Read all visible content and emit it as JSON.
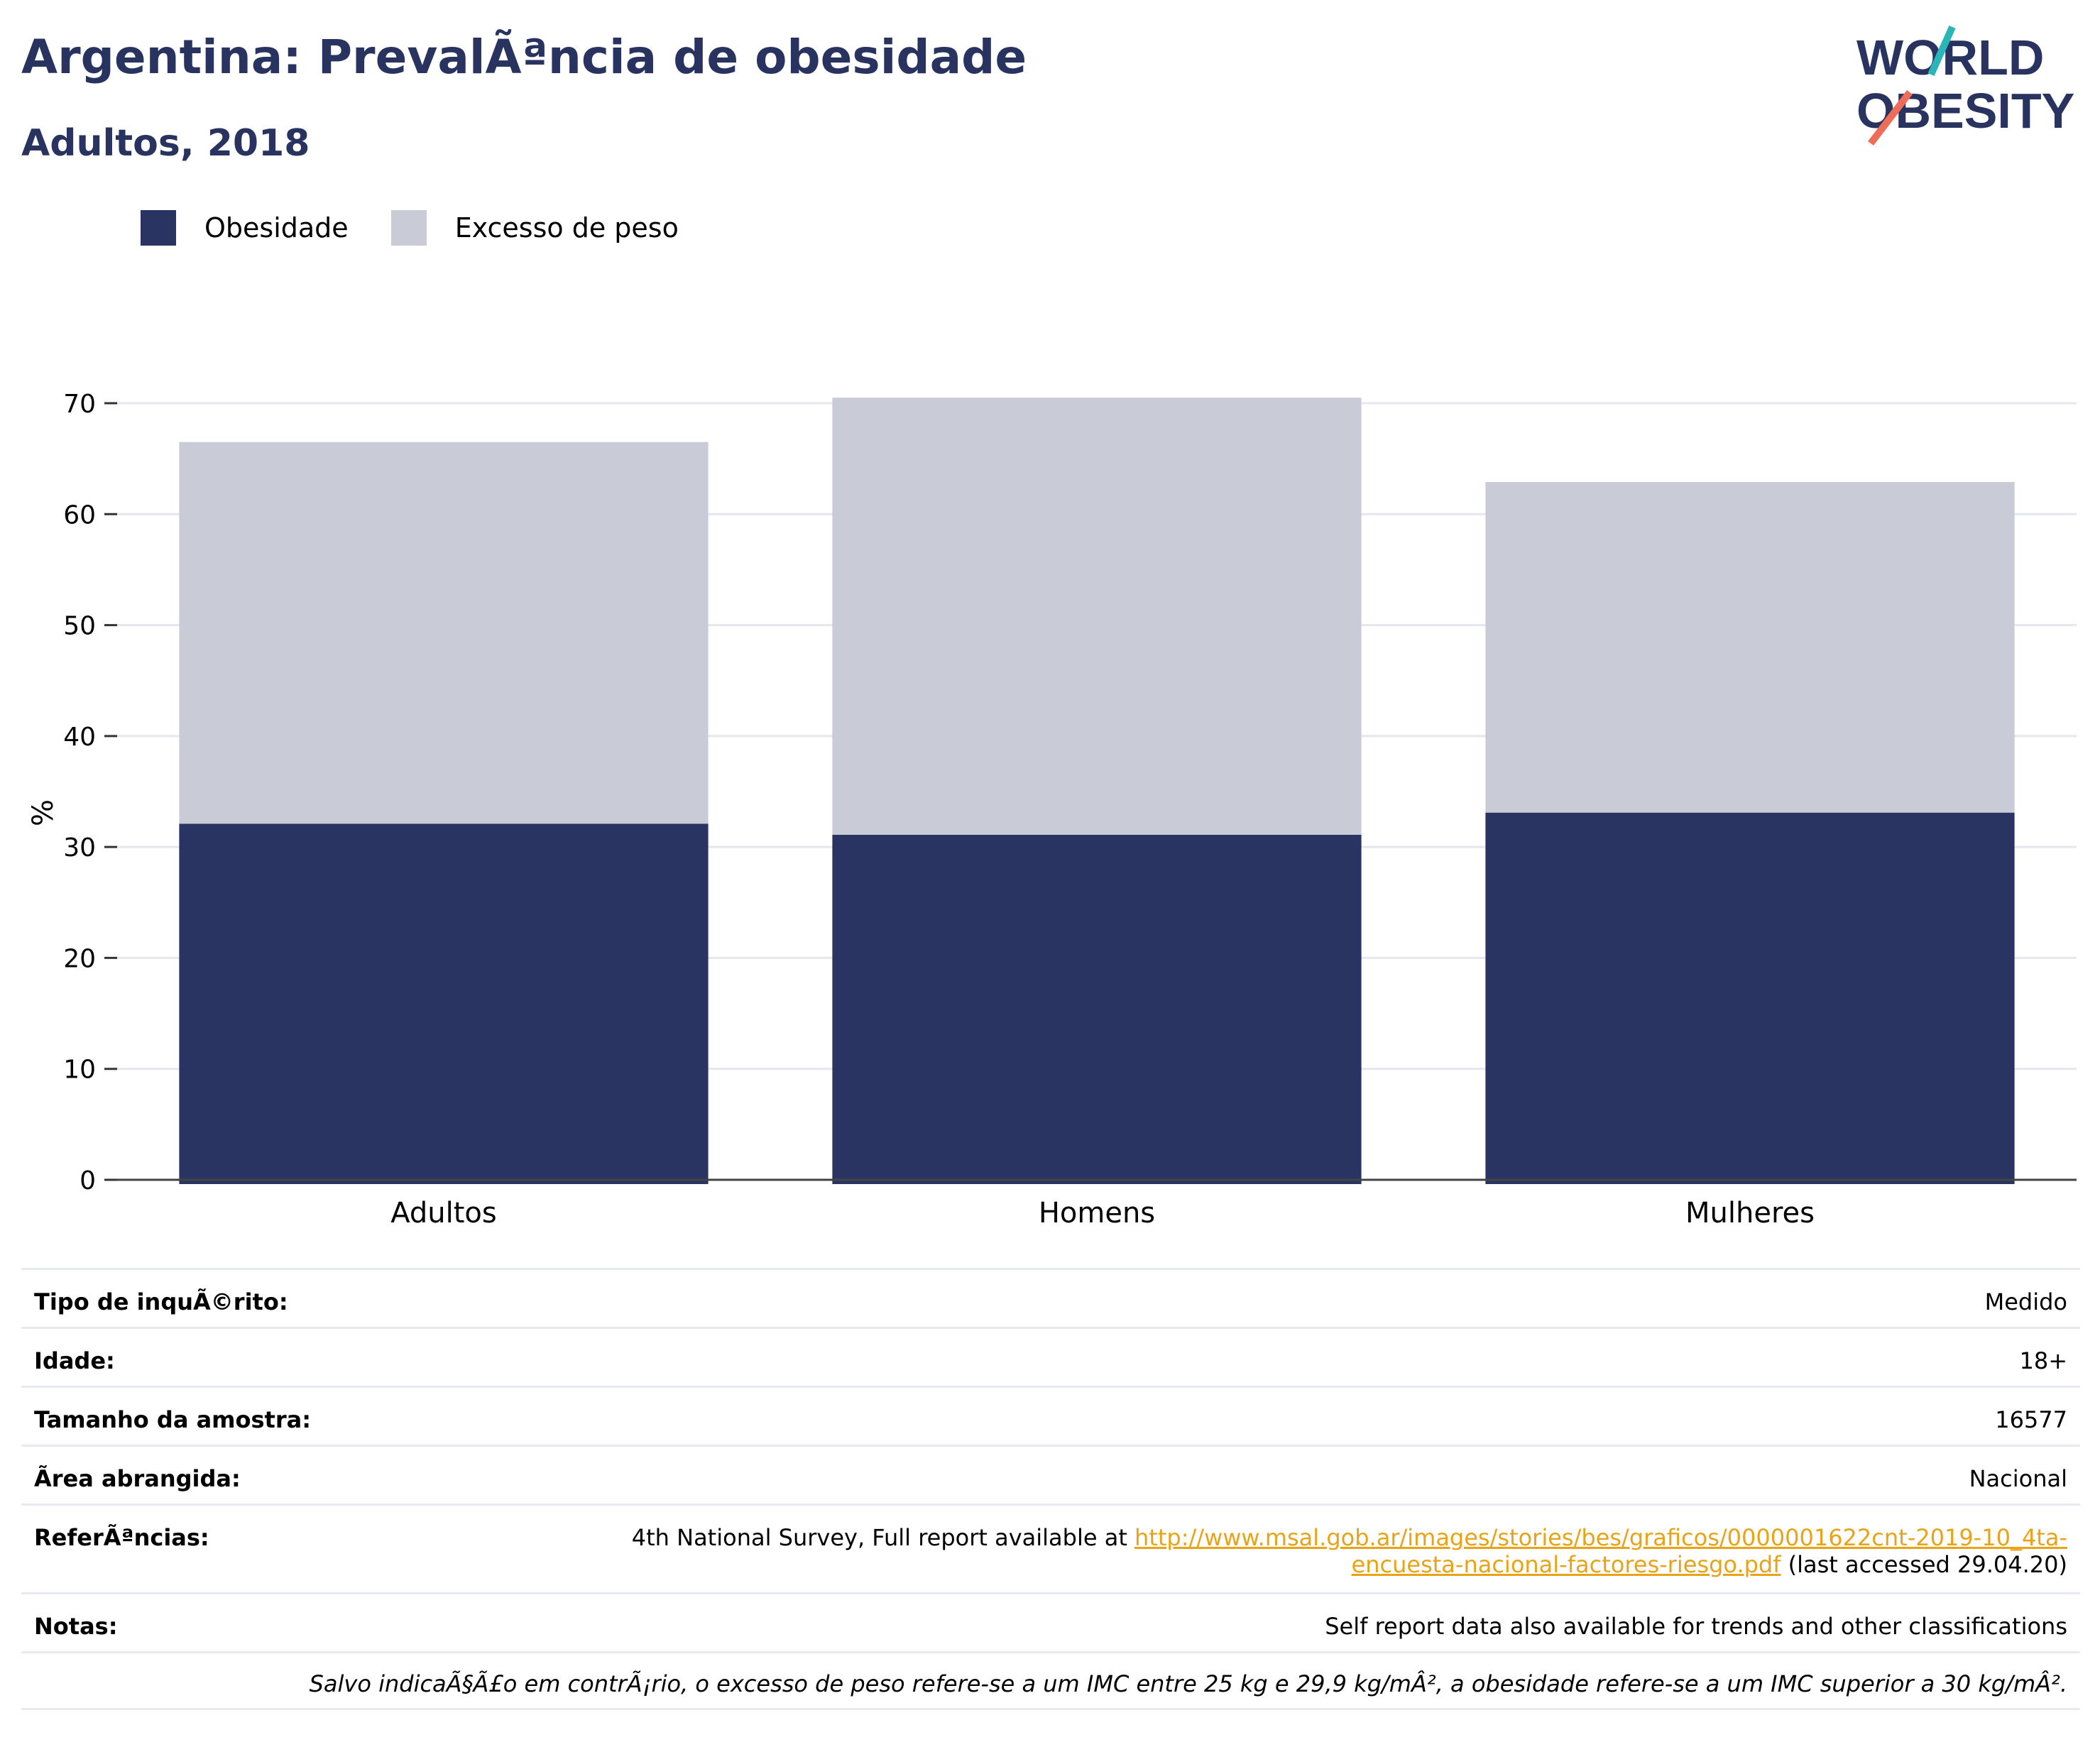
{
  "header": {
    "title": "Argentina: PrevalÃªncia de obesidade",
    "subtitle": "Adultos, 2018"
  },
  "logo": {
    "line1": "WORLD",
    "line2": "OBESITY"
  },
  "colors": {
    "obesity": "#293462",
    "overweight": "#c9cbd6",
    "title": "#283360",
    "link": "#e8a317"
  },
  "legend": [
    {
      "label": "Obesidade",
      "color": "#293462"
    },
    {
      "label": "Excesso de peso",
      "color": "#c9cbd6"
    }
  ],
  "chart_data": {
    "type": "bar",
    "stacked": true,
    "categories": [
      "Adultos",
      "Homens",
      "Mulheres"
    ],
    "series": [
      {
        "name": "Obesidade",
        "values": [
          32.1,
          31.1,
          33.1
        ]
      },
      {
        "name": "Excesso de peso",
        "values": [
          34.4,
          39.4,
          29.8
        ]
      }
    ],
    "ylabel": "%",
    "ylim": [
      0,
      70
    ],
    "yticks": [
      0,
      10,
      20,
      30,
      40,
      50,
      60,
      70
    ],
    "grid": true,
    "legend_position": "top-left"
  },
  "info": {
    "survey_type": {
      "label": "Tipo de inquÃ©rito:",
      "value": "Medido"
    },
    "age": {
      "label": "Idade:",
      "value": "18+"
    },
    "sample_size": {
      "label": "Tamanho da amostra:",
      "value": "16577"
    },
    "area": {
      "label": "Ãrea abrangida:",
      "value": "Nacional"
    },
    "references": {
      "label": "ReferÃªncias:",
      "prefix": "4th National Survey, Full report available at ",
      "link_line1": "http://www.msal.gob.ar/images/stories/bes/graficos/0000001622cnt-2019-10_4ta-",
      "link_line2": "encuesta-nacional-factores-riesgo.pdf",
      "suffix": " (last accessed 29.04.20)"
    },
    "notes": {
      "label": "Notas:",
      "value": "Self report data also available for trends and other classifications"
    },
    "footnote": "Salvo indicaÃ§Ã£o em contrÃ¡rio, o excesso de peso refere-se a um IMC entre 25 kg e 29,9 kg/mÂ², a obesidade refere-se a um IMC superior a 30 kg/mÂ²."
  }
}
